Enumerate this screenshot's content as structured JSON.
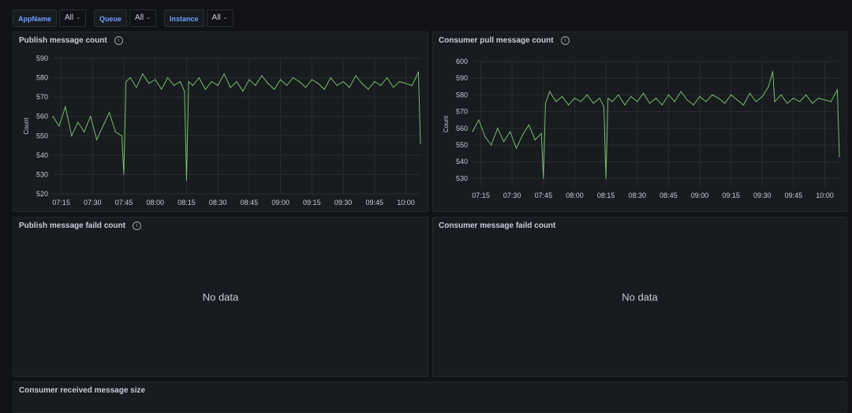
{
  "variables": [
    {
      "label": "AppName",
      "value": "All"
    },
    {
      "label": "Queue",
      "value": "All"
    },
    {
      "label": "Instance",
      "value": "All"
    }
  ],
  "panels": {
    "publish_count": {
      "title": "Publish message count"
    },
    "consumer_pull": {
      "title": "Consumer pull message count"
    },
    "publish_failed": {
      "title": "Publish message faild count",
      "empty_text": "No data"
    },
    "consumer_failed": {
      "title": "Consumer message faild count",
      "empty_text": "No data"
    },
    "received_size": {
      "title": "Consumer received message size"
    }
  },
  "colors": {
    "series": "#73bf69",
    "background": "#111217",
    "panel": "#181b1f"
  },
  "chart_data": [
    {
      "type": "line",
      "title": "Publish message count",
      "ylabel": "Count",
      "ylim": [
        520,
        590
      ],
      "yticks": [
        520,
        530,
        540,
        550,
        560,
        570,
        580,
        590
      ],
      "x": [
        "07:11",
        "07:14",
        "07:17",
        "07:20",
        "07:23",
        "07:26",
        "07:29",
        "07:32",
        "07:35",
        "07:38",
        "07:41",
        "07:44",
        "07:45",
        "07:46",
        "07:48",
        "07:51",
        "07:54",
        "07:57",
        "08:00",
        "08:03",
        "08:06",
        "08:09",
        "08:12",
        "08:14",
        "08:15",
        "08:16",
        "08:18",
        "08:21",
        "08:24",
        "08:27",
        "08:30",
        "08:33",
        "08:36",
        "08:39",
        "08:42",
        "08:45",
        "08:48",
        "08:51",
        "08:54",
        "08:57",
        "09:00",
        "09:03",
        "09:06",
        "09:09",
        "09:12",
        "09:15",
        "09:18",
        "09:21",
        "09:24",
        "09:27",
        "09:30",
        "09:33",
        "09:36",
        "09:39",
        "09:42",
        "09:45",
        "09:48",
        "09:51",
        "09:54",
        "09:57",
        "10:00",
        "10:03",
        "10:06",
        "10:07"
      ],
      "series": [
        {
          "values": [
            560,
            555,
            565,
            550,
            557,
            552,
            560,
            548,
            555,
            562,
            552,
            550,
            530,
            578,
            580,
            575,
            582,
            577,
            579,
            574,
            580,
            576,
            578,
            573,
            527,
            578,
            576,
            580,
            574,
            578,
            576,
            582,
            575,
            578,
            573,
            579,
            576,
            581,
            577,
            574,
            579,
            576,
            580,
            578,
            575,
            579,
            577,
            574,
            580,
            576,
            578,
            575,
            581,
            577,
            574,
            578,
            576,
            580,
            575,
            578,
            577,
            576,
            583,
            546
          ]
        }
      ],
      "x_ticks": [
        "07:15",
        "07:30",
        "07:45",
        "08:00",
        "08:15",
        "08:30",
        "08:45",
        "09:00",
        "09:15",
        "09:30",
        "09:45",
        "10:00"
      ]
    },
    {
      "type": "line",
      "title": "Consumer pull message count",
      "ylabel": "Count",
      "ylim": [
        525,
        600
      ],
      "yticks": [
        530,
        540,
        550,
        560,
        570,
        580,
        590,
        600
      ],
      "x": [
        "07:11",
        "07:14",
        "07:17",
        "07:20",
        "07:23",
        "07:26",
        "07:29",
        "07:32",
        "07:35",
        "07:38",
        "07:41",
        "07:44",
        "07:45",
        "07:46",
        "07:48",
        "07:51",
        "07:54",
        "07:57",
        "08:00",
        "08:03",
        "08:06",
        "08:09",
        "08:12",
        "08:14",
        "08:15",
        "08:16",
        "08:18",
        "08:21",
        "08:24",
        "08:27",
        "08:30",
        "08:33",
        "08:36",
        "08:39",
        "08:42",
        "08:45",
        "08:48",
        "08:51",
        "08:54",
        "08:57",
        "09:00",
        "09:03",
        "09:06",
        "09:09",
        "09:12",
        "09:15",
        "09:18",
        "09:21",
        "09:24",
        "09:27",
        "09:30",
        "09:33",
        "09:35",
        "09:36",
        "09:39",
        "09:42",
        "09:45",
        "09:48",
        "09:51",
        "09:54",
        "09:57",
        "10:00",
        "10:03",
        "10:06",
        "10:07"
      ],
      "series": [
        {
          "values": [
            558,
            565,
            555,
            550,
            560,
            552,
            558,
            548,
            556,
            562,
            553,
            557,
            530,
            575,
            582,
            576,
            579,
            574,
            578,
            576,
            580,
            575,
            578,
            573,
            530,
            578,
            576,
            580,
            574,
            579,
            576,
            581,
            575,
            578,
            574,
            580,
            576,
            582,
            577,
            574,
            579,
            576,
            580,
            578,
            575,
            580,
            577,
            574,
            581,
            576,
            579,
            585,
            594,
            576,
            580,
            575,
            578,
            576,
            580,
            575,
            578,
            577,
            576,
            583,
            543
          ]
        }
      ],
      "x_ticks": [
        "07:15",
        "07:30",
        "07:45",
        "08:00",
        "08:15",
        "08:30",
        "08:45",
        "09:00",
        "09:15",
        "09:30",
        "09:45",
        "10:00"
      ]
    }
  ]
}
